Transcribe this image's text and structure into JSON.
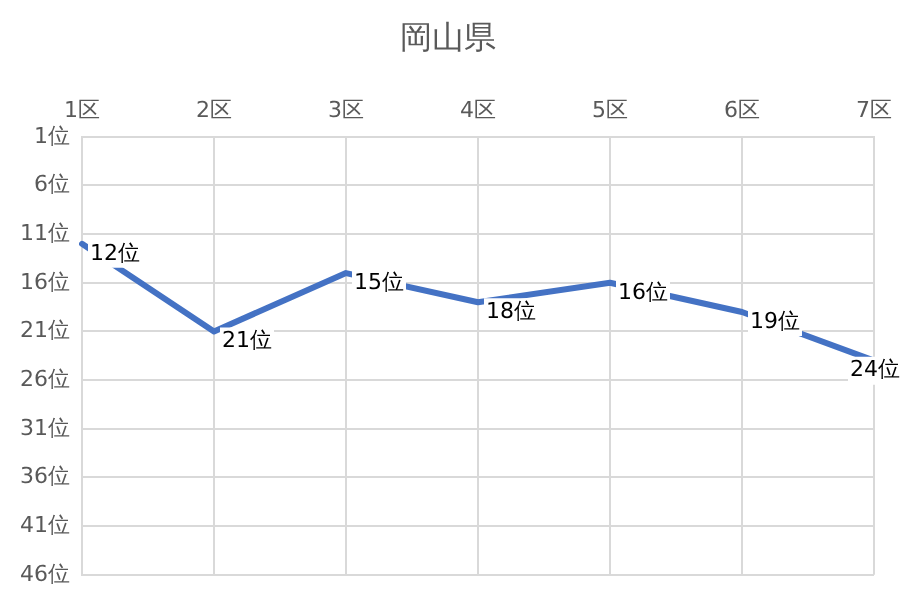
{
  "chart_data": {
    "type": "line",
    "title": "岡山県",
    "categories": [
      "1区",
      "2区",
      "3区",
      "4区",
      "5区",
      "6区",
      "7区"
    ],
    "series": [
      {
        "color": "#4472c4",
        "values": [
          12,
          21,
          15,
          18,
          16,
          19,
          24
        ],
        "value_labels": [
          "12位",
          "21位",
          "15位",
          "18位",
          "16位",
          "19位",
          "24位"
        ]
      }
    ],
    "ylim": [
      46,
      1
    ],
    "yticks": [
      {
        "value": 1,
        "label": "1位"
      },
      {
        "value": 6,
        "label": "6位"
      },
      {
        "value": 11,
        "label": "11位"
      },
      {
        "value": 16,
        "label": "16位"
      },
      {
        "value": 21,
        "label": "21位"
      },
      {
        "value": 26,
        "label": "26位"
      },
      {
        "value": 31,
        "label": "31位"
      },
      {
        "value": 36,
        "label": "36位"
      },
      {
        "value": 41,
        "label": "41位"
      },
      {
        "value": 46,
        "label": "46位"
      }
    ],
    "grid": true,
    "legend": false,
    "marker": "none",
    "line_style": "solid"
  }
}
